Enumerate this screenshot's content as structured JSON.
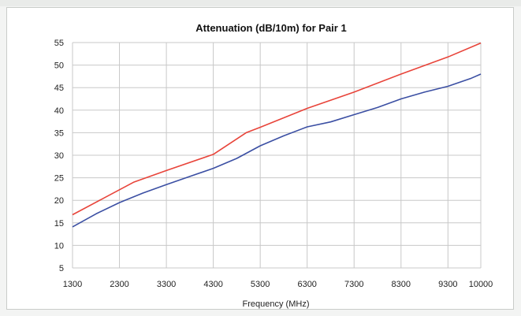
{
  "chart_data": {
    "type": "line",
    "title": "Attenuation (dB/10m)  for Pair 1",
    "xlabel": "Frequency (MHz)",
    "ylabel": "",
    "xlim": [
      1300,
      10000
    ],
    "ylim": [
      5,
      55
    ],
    "x_ticks": [
      "1300",
      "2300",
      "3300",
      "4300",
      "5300",
      "6300",
      "7300",
      "8300",
      "9300",
      "10000"
    ],
    "x_tick_values": [
      1300,
      2300,
      3300,
      4300,
      5300,
      6300,
      7300,
      8300,
      9300,
      10000
    ],
    "y_ticks": [
      "5",
      "10",
      "15",
      "20",
      "25",
      "30",
      "35",
      "40",
      "45",
      "50",
      "55"
    ],
    "y_tick_values": [
      5,
      10,
      15,
      20,
      25,
      30,
      35,
      40,
      45,
      50,
      55
    ],
    "grid": true,
    "legend": "none",
    "series": [
      {
        "color": "#e8443a",
        "x": [
          1300,
          2600,
          3300,
          4300,
          5000,
          5300,
          6300,
          7300,
          8300,
          9300,
          10000
        ],
        "y": [
          16.8,
          24.0,
          26.6,
          30.2,
          35.0,
          36.2,
          40.4,
          44.0,
          48.0,
          51.8,
          54.9
        ]
      },
      {
        "color": "#3b4fa3",
        "x": [
          1300,
          1800,
          2300,
          2800,
          3300,
          3800,
          4300,
          4800,
          5300,
          5800,
          6300,
          6800,
          7300,
          7800,
          8300,
          8800,
          9300,
          9800,
          10000
        ],
        "y": [
          14.1,
          17.0,
          19.5,
          21.6,
          23.5,
          25.3,
          27.1,
          29.3,
          32.1,
          34.3,
          36.3,
          37.4,
          39.0,
          40.6,
          42.5,
          44.0,
          45.3,
          47.1,
          48.0
        ]
      }
    ]
  }
}
